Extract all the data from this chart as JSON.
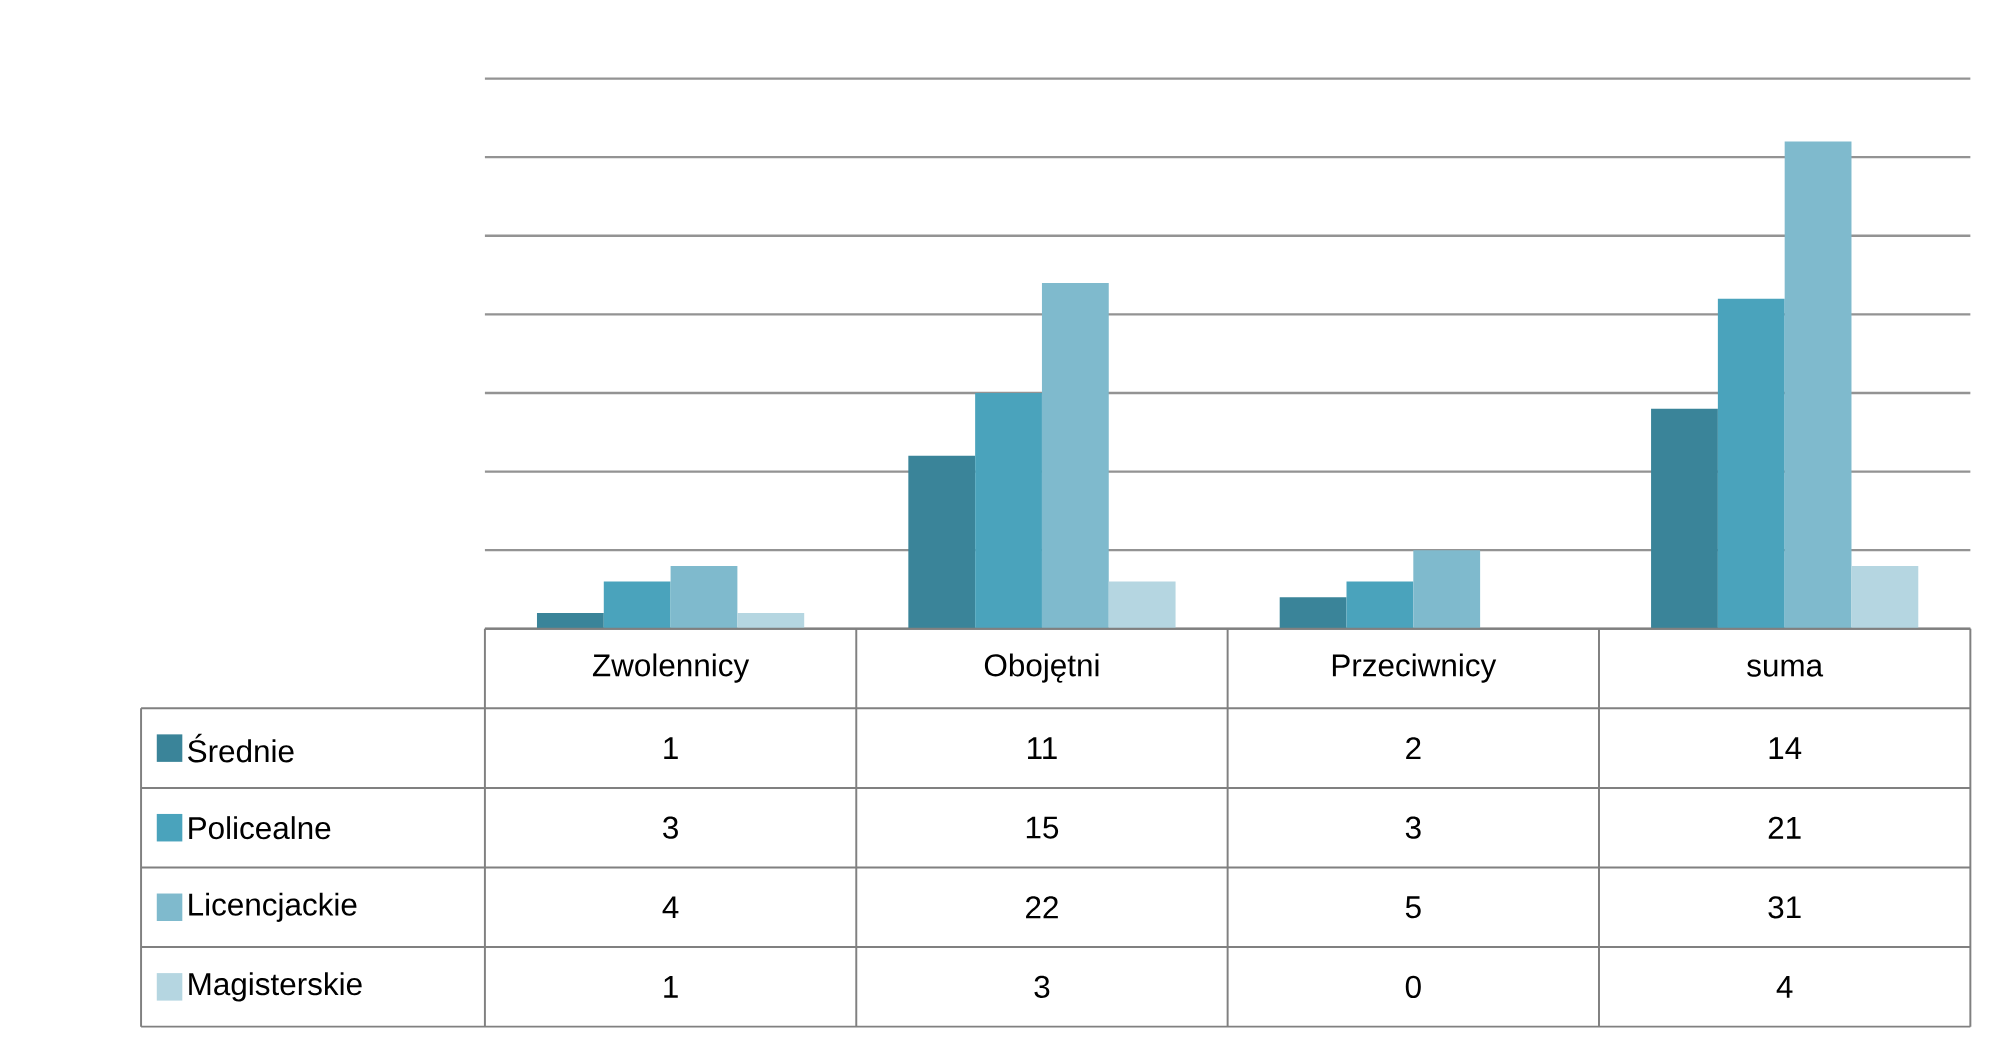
{
  "chart_data": {
    "type": "bar",
    "categories": [
      "Zwolennicy",
      "Obojętni",
      "Przeciwnicy",
      "suma"
    ],
    "series": [
      {
        "name": "Średnie",
        "color": "#3a8499",
        "values": [
          1,
          11,
          2,
          14
        ]
      },
      {
        "name": "Policealne",
        "color": "#4aa3bc",
        "values": [
          3,
          15,
          3,
          21
        ]
      },
      {
        "name": "Licencjackie",
        "color": "#7fbacd",
        "values": [
          4,
          22,
          5,
          31
        ]
      },
      {
        "name": "Magisterskie",
        "color": "#b5d6e1",
        "values": [
          1,
          3,
          0,
          4
        ]
      }
    ],
    "ylim": [
      0,
      35
    ],
    "yticks": [
      {
        "value": 0,
        "label": null
      },
      {
        "value": 5,
        "label": null
      },
      {
        "value": 10,
        "label": null
      },
      {
        "value": 15,
        "label": null
      },
      {
        "value": 20,
        "label": null
      },
      {
        "value": 25,
        "label": null
      },
      {
        "value": 30,
        "label": null
      },
      {
        "value": 35,
        "label": null
      }
    ],
    "grid": "y",
    "legend": "bottom left",
    "data_labels": true,
    "tick_labels": "x"
  }
}
